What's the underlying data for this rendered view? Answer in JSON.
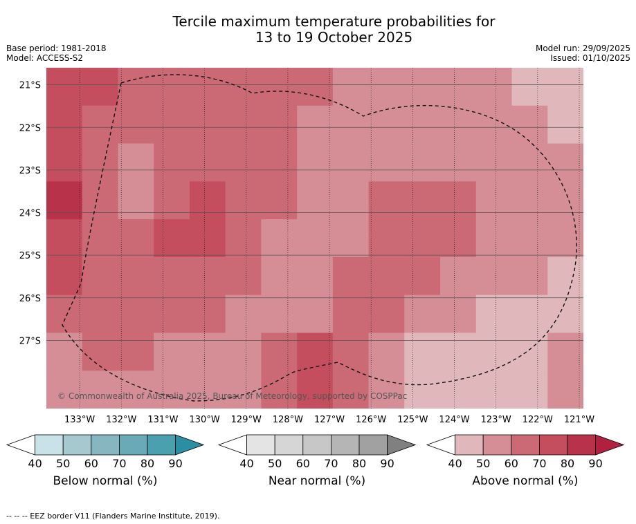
{
  "title_line1": "Tercile maximum temperature probabilities for",
  "title_line2": "13 to 19 October 2025",
  "base_period": "Base period: 1981-2018",
  "model": "Model: ACCESS-S2",
  "model_run": "Model run: 29/09/2025",
  "issued": "Issued: 01/10/2025",
  "copyright": "© Commonwealth of Australia 2025, Bureau of Meteorology, supported by COSPPac",
  "footer": "--  --  -- EEZ border V11 (Flanders Marine Institute, 2019).",
  "chart_data": {
    "type": "heatmap",
    "x_tick_labels": [
      "133°W",
      "132°W",
      "131°W",
      "130°W",
      "129°W",
      "128°W",
      "127°W",
      "126°W",
      "125°W",
      "124°W",
      "123°W",
      "122°W",
      "121°W"
    ],
    "x_tick_values": [
      -133,
      -132,
      -131,
      -130,
      -129,
      -128,
      -127,
      -126,
      -125,
      -124,
      -123,
      -122,
      -121
    ],
    "y_tick_labels": [
      "21°S",
      "22°S",
      "23°S",
      "24°S",
      "25°S",
      "26°S",
      "27°S"
    ],
    "y_tick_values": [
      -21,
      -22,
      -23,
      -24,
      -25,
      -26,
      -27
    ],
    "xlim": [
      -133.8,
      -120.9
    ],
    "ylim": [
      -28.6,
      -20.6
    ],
    "fill_field": [
      [
        80,
        80,
        70,
        70,
        70,
        70,
        70,
        70,
        60,
        60,
        60,
        60,
        60,
        50,
        50
      ],
      [
        80,
        70,
        70,
        70,
        70,
        70,
        70,
        60,
        60,
        60,
        60,
        60,
        60,
        60,
        50
      ],
      [
        80,
        70,
        60,
        70,
        70,
        70,
        70,
        60,
        60,
        60,
        60,
        60,
        60,
        60,
        60
      ],
      [
        90,
        70,
        60,
        70,
        80,
        70,
        70,
        60,
        60,
        70,
        70,
        70,
        60,
        60,
        60
      ],
      [
        80,
        70,
        70,
        80,
        80,
        70,
        60,
        60,
        60,
        70,
        70,
        70,
        60,
        60,
        60
      ],
      [
        80,
        70,
        70,
        70,
        70,
        70,
        60,
        60,
        70,
        70,
        70,
        60,
        60,
        60,
        50
      ],
      [
        70,
        70,
        70,
        70,
        70,
        60,
        60,
        60,
        70,
        70,
        60,
        60,
        50,
        50,
        50
      ],
      [
        60,
        70,
        70,
        60,
        60,
        60,
        70,
        80,
        70,
        60,
        50,
        50,
        40,
        40,
        60
      ],
      [
        60,
        60,
        60,
        60,
        60,
        60,
        70,
        80,
        70,
        60,
        50,
        40,
        40,
        40,
        60
      ]
    ],
    "colorbars": [
      {
        "name": "Below normal (%)",
        "tick_labels": [
          "40",
          "50",
          "60",
          "70",
          "80",
          "90"
        ],
        "colors": [
          "#ffffff",
          "#c9e2e7",
          "#a6c9d0",
          "#86b6c0",
          "#6aa9b6",
          "#4ba0b0",
          "#2b8fa3"
        ]
      },
      {
        "name": "Near normal (%)",
        "tick_labels": [
          "40",
          "50",
          "60",
          "70",
          "80",
          "90"
        ],
        "colors": [
          "#ffffff",
          "#e4e4e4",
          "#d6d6d6",
          "#c7c7c7",
          "#b5b5b5",
          "#a1a1a1",
          "#808080"
        ]
      },
      {
        "name": "Above normal (%)",
        "tick_labels": [
          "40",
          "50",
          "60",
          "70",
          "80",
          "90"
        ],
        "colors": [
          "#ffffff",
          "#e0b8bc",
          "#d58e96",
          "#cb6a75",
          "#c44e5e",
          "#b8324a",
          "#b02040"
        ]
      }
    ],
    "level_colors": {
      "40": "#e0b8bc",
      "50": "#e0b8bc",
      "60": "#d58e96",
      "70": "#cb6a75",
      "80": "#c44e5e",
      "90": "#b8324a"
    },
    "annotation": "EEZ border (dashed)"
  }
}
